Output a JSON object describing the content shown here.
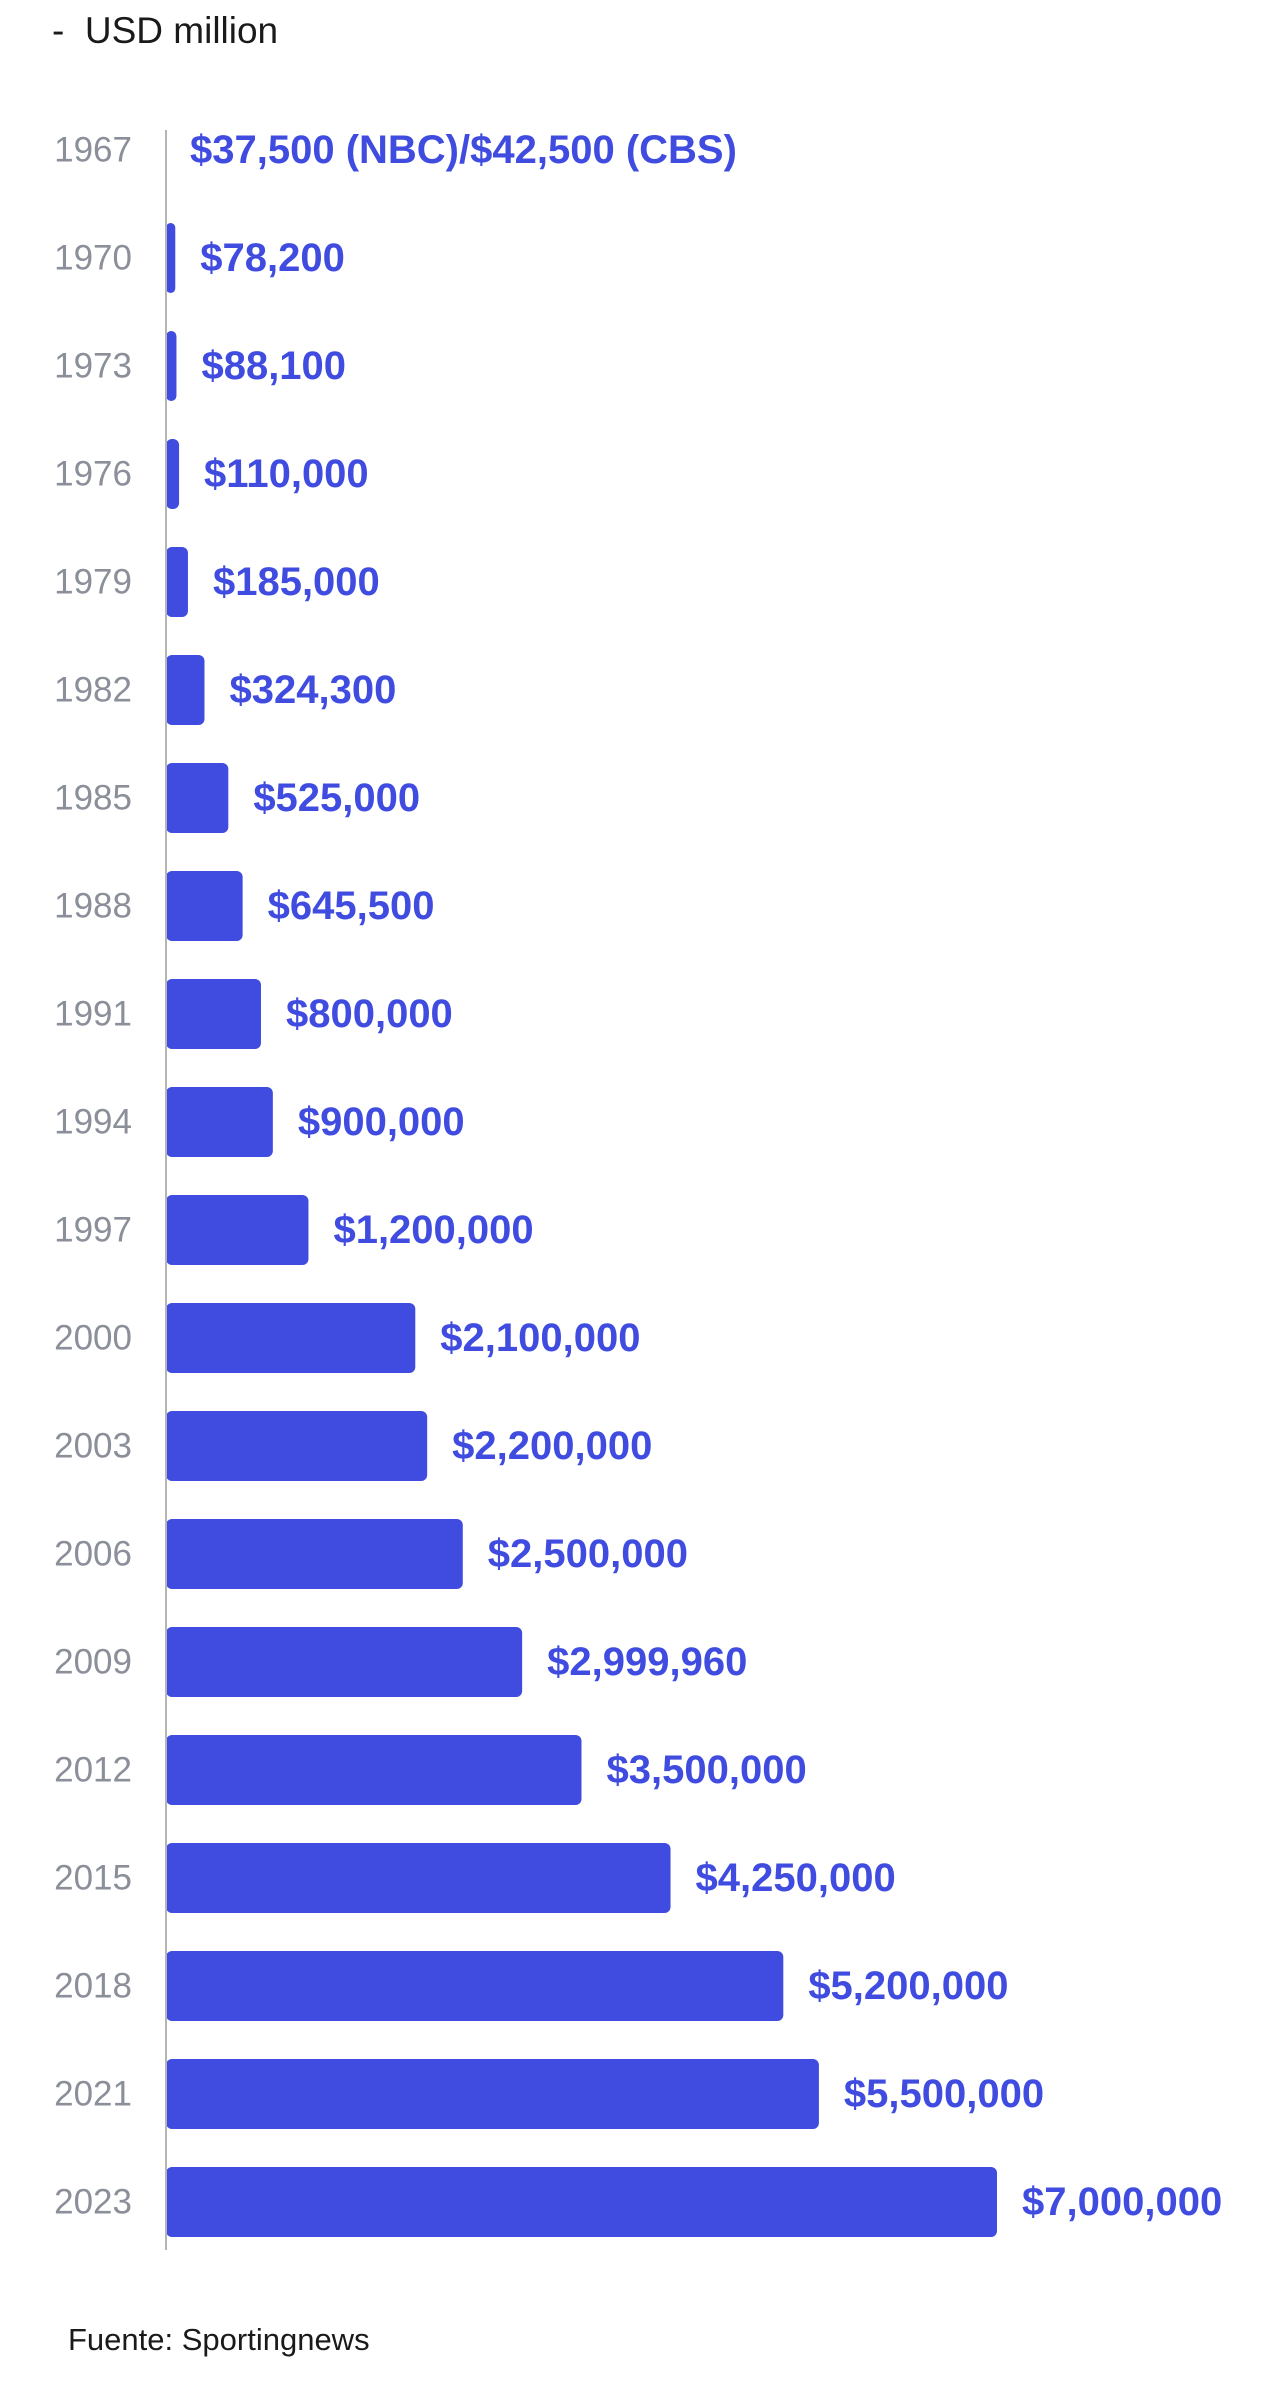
{
  "subtitle": "-  USD million",
  "source": "Fuente: Sportingnews",
  "colors": {
    "bar": "#404ce0",
    "value_label": "#404ce0",
    "year_label": "#8a8f99",
    "axis": "#b5b5b5"
  },
  "chart_data": {
    "type": "bar",
    "orientation": "horizontal",
    "unit": "USD million",
    "categories": [
      "1967",
      "1970",
      "1973",
      "1976",
      "1979",
      "1982",
      "1985",
      "1988",
      "1991",
      "1994",
      "1997",
      "2000",
      "2003",
      "2006",
      "2009",
      "2012",
      "2015",
      "2018",
      "2021",
      "2023"
    ],
    "values": [
      42500,
      78200,
      88100,
      110000,
      185000,
      324300,
      525000,
      645500,
      800000,
      900000,
      1200000,
      2100000,
      2200000,
      2500000,
      2999960,
      3500000,
      4250000,
      5200000,
      5500000,
      7000000
    ],
    "value_labels": [
      "$37,500 (NBC)/$42,500 (CBS)",
      "$78,200",
      "$88,100",
      "$110,000",
      "$185,000",
      "$324,300",
      "$525,000",
      "$645,500",
      "$800,000",
      "$900,000",
      "$1,200,000",
      "$2,100,000",
      "$2,200,000",
      "$2,500,000",
      "$2,999,960",
      "$3,500,000",
      "$4,250,000",
      "$5,200,000",
      "$5,500,000",
      "$7,000,000"
    ],
    "grid": false,
    "legend": "none"
  }
}
